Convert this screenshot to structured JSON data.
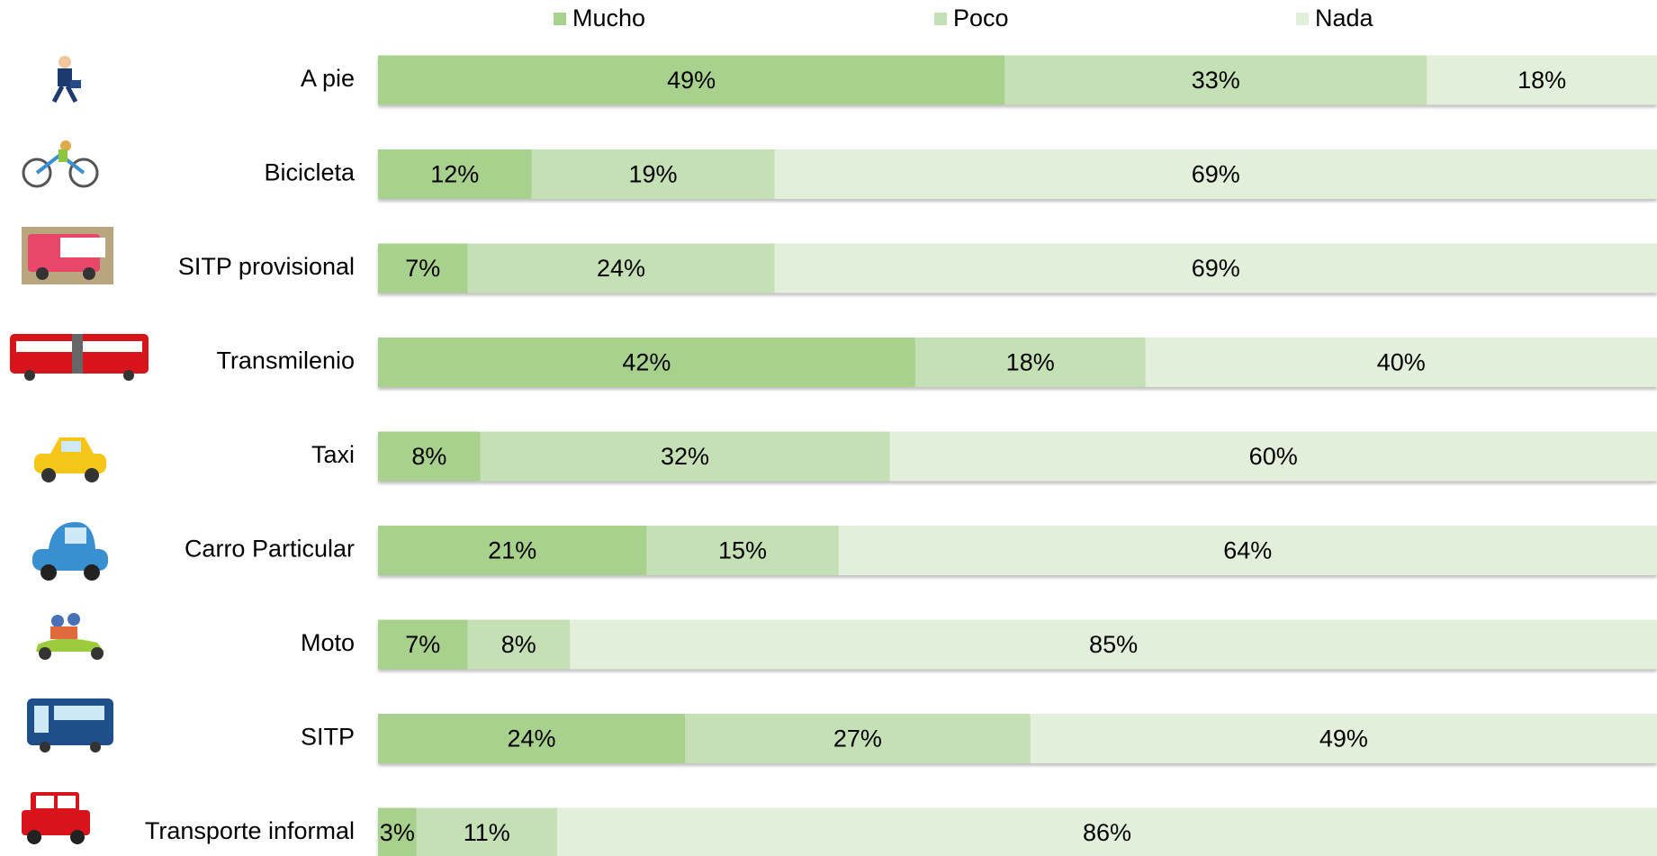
{
  "chart_data": {
    "type": "stacked-barh",
    "categories": [
      "A pie",
      "Bicicleta",
      "SITP provisional",
      "Transmilenio",
      "Taxi",
      "Carro Particular",
      "Moto",
      "SITP",
      "Transporte informal"
    ],
    "xlim": [
      0,
      100
    ],
    "series": [
      {
        "name": "Mucho",
        "color": "#a9d18e",
        "values": [
          49,
          12,
          7,
          42,
          8,
          21,
          7,
          24,
          3
        ],
        "value_labels": [
          "49%",
          "12%",
          "7%",
          "42%",
          "8%",
          "21%",
          "7%",
          "24%",
          "3%"
        ]
      },
      {
        "name": "Poco",
        "color": "#c5e0b4",
        "values": [
          33,
          19,
          24,
          18,
          32,
          15,
          8,
          27,
          11
        ],
        "value_labels": [
          "33%",
          "19%",
          "24%",
          "18%",
          "32%",
          "15%",
          "8%",
          "27%",
          "11%"
        ]
      },
      {
        "name": "Nada",
        "color": "#e2efda",
        "values": [
          18,
          69,
          69,
          40,
          60,
          64,
          85,
          49,
          86
        ],
        "value_labels": [
          "18%",
          "69%",
          "69%",
          "40%",
          "60%",
          "64%",
          "85%",
          "49%",
          "86%"
        ]
      }
    ],
    "legend": "top"
  }
}
